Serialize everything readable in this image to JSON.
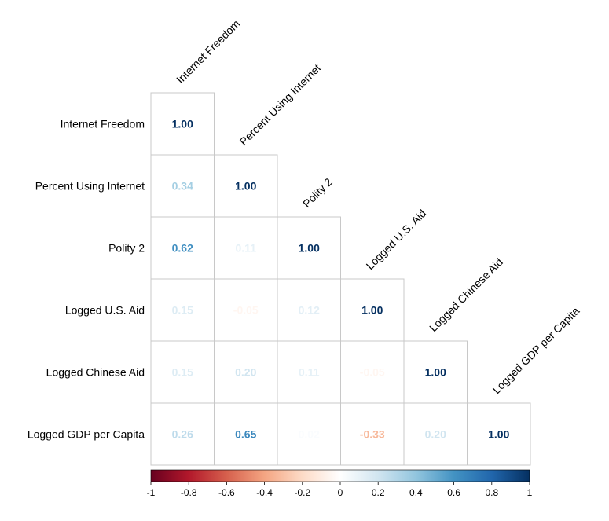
{
  "chart_data": {
    "type": "heatmap",
    "title": "",
    "variables": [
      "Internet Freedom",
      "Percent Using Internet",
      "Polity 2",
      "Logged U.S. Aid",
      "Logged Chinese Aid",
      "Logged GDP per Capita"
    ],
    "matrix": [
      [
        1.0,
        null,
        null,
        null,
        null,
        null
      ],
      [
        0.34,
        1.0,
        null,
        null,
        null,
        null
      ],
      [
        0.62,
        0.11,
        1.0,
        null,
        null,
        null
      ],
      [
        0.15,
        -0.05,
        0.12,
        1.0,
        null,
        null
      ],
      [
        0.15,
        0.2,
        0.11,
        -0.05,
        1.0,
        null
      ],
      [
        0.26,
        0.65,
        0.02,
        -0.33,
        0.2,
        1.0
      ]
    ],
    "matrix_labels": [
      [
        "1.00",
        "",
        "",
        "",
        "",
        ""
      ],
      [
        "0.34",
        "1.00",
        "",
        "",
        "",
        ""
      ],
      [
        "0.62",
        "0.11",
        "1.00",
        "",
        "",
        ""
      ],
      [
        "0.15",
        "-0.05",
        "0.12",
        "1.00",
        "",
        ""
      ],
      [
        "0.15",
        "0.20",
        "0.11",
        "-0.05",
        "1.00",
        ""
      ],
      [
        "0.26",
        "0.65",
        "0.02",
        "-0.33",
        "0.20",
        "1.00"
      ]
    ],
    "layout": "lower-triangle",
    "colorbar": {
      "range": [
        -1,
        1
      ],
      "ticks": [
        -1,
        -0.8,
        -0.6,
        -0.4,
        -0.2,
        0,
        0.2,
        0.4,
        0.6,
        0.8,
        1
      ],
      "tick_labels": [
        "-1",
        "-0.8",
        "-0.6",
        "-0.4",
        "-0.2",
        "0",
        "0.2",
        "0.4",
        "0.6",
        "0.8",
        "1"
      ],
      "stops": [
        {
          "v": -1.0,
          "c": "#67001f"
        },
        {
          "v": -0.8,
          "c": "#b2182b"
        },
        {
          "v": -0.6,
          "c": "#d6604d"
        },
        {
          "v": -0.4,
          "c": "#f4a582"
        },
        {
          "v": -0.2,
          "c": "#fddbc7"
        },
        {
          "v": 0.0,
          "c": "#ffffff"
        },
        {
          "v": 0.2,
          "c": "#d1e5f0"
        },
        {
          "v": 0.4,
          "c": "#92c5de"
        },
        {
          "v": 0.6,
          "c": "#4393c3"
        },
        {
          "v": 0.8,
          "c": "#2166ac"
        },
        {
          "v": 1.0,
          "c": "#053061"
        }
      ],
      "placement": "bottom"
    },
    "grid_color": "#c8c8c8"
  }
}
